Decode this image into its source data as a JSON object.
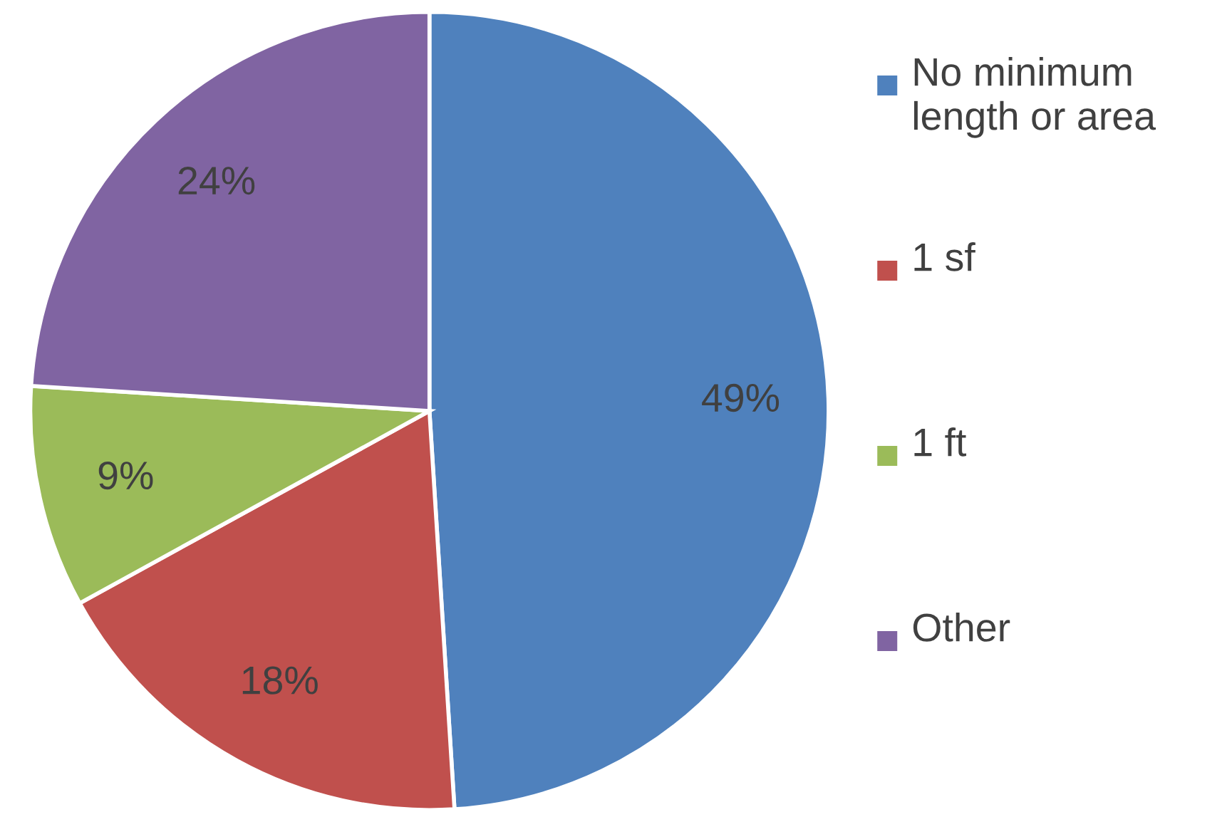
{
  "chart_data": {
    "type": "pie",
    "categories": [
      "No minimum length or area",
      "1 sf",
      "1 ft",
      "Other"
    ],
    "values": [
      49,
      18,
      9,
      24
    ],
    "colors": [
      "#4f81bd",
      "#c0504d",
      "#9bbb59",
      "#8064a2"
    ],
    "value_labels": [
      "49%",
      "18%",
      "9%",
      "24%"
    ],
    "legend": "right"
  }
}
